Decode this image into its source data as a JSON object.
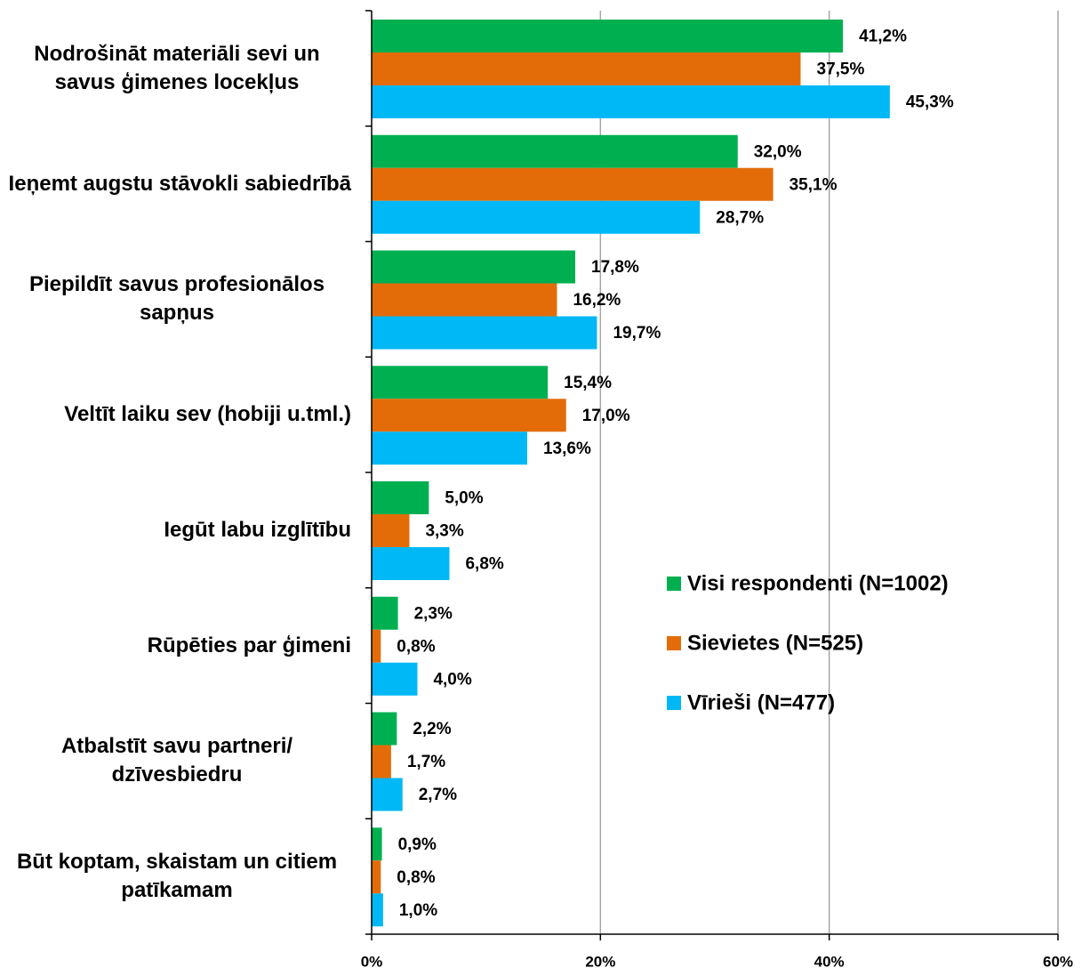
{
  "chart_data": {
    "type": "bar",
    "orientation": "horizontal",
    "categories": [
      "Nodrošināt materiāli sevi un savus ģimenes locekļus",
      "Ieņemt augstu stāvokli sabiedrībā",
      "Piepildīt savus profesionālos sapņus",
      "Veltīt laiku sev (hobiji u.tml.)",
      "Iegūt labu izglītību",
      "Rūpēties par ģimeni",
      "Atbalstīt savu partneri/ dzīvesbiedru",
      "Būt koptam, skaistam un citiem patīkamam"
    ],
    "series": [
      {
        "name": "Visi respondenti (N=1002)",
        "color": "#00b050",
        "values": [
          41.2,
          32.0,
          17.8,
          15.4,
          5.0,
          2.3,
          2.2,
          0.9
        ],
        "value_labels": [
          "41,2%",
          "32,0%",
          "17,8%",
          "15,4%",
          "5,0%",
          "2,3%",
          "2,2%",
          "0,9%"
        ]
      },
      {
        "name": "Sievietes (N=525)",
        "color": "#e36c09",
        "values": [
          37.5,
          35.1,
          16.2,
          17.0,
          3.3,
          0.8,
          1.7,
          0.8
        ],
        "value_labels": [
          "37,5%",
          "35,1%",
          "16,2%",
          "17,0%",
          "3,3%",
          "0,8%",
          "1,7%",
          "0,8%"
        ]
      },
      {
        "name": "Vīrieši (N=477)",
        "color": "#00b8f5",
        "values": [
          45.3,
          28.7,
          19.7,
          13.6,
          6.8,
          4.0,
          2.7,
          1.0
        ],
        "value_labels": [
          "45,3%",
          "28,7%",
          "19,7%",
          "13,6%",
          "6,8%",
          "4,0%",
          "2,7%",
          "1,0%"
        ]
      }
    ],
    "xlim": [
      0,
      60
    ],
    "xticks": [
      {
        "value": 0,
        "label": "0%"
      },
      {
        "value": 20,
        "label": "20%"
      },
      {
        "value": 40,
        "label": "40%"
      },
      {
        "value": 60,
        "label": "60%"
      }
    ],
    "grid": true,
    "legend": "center right"
  }
}
